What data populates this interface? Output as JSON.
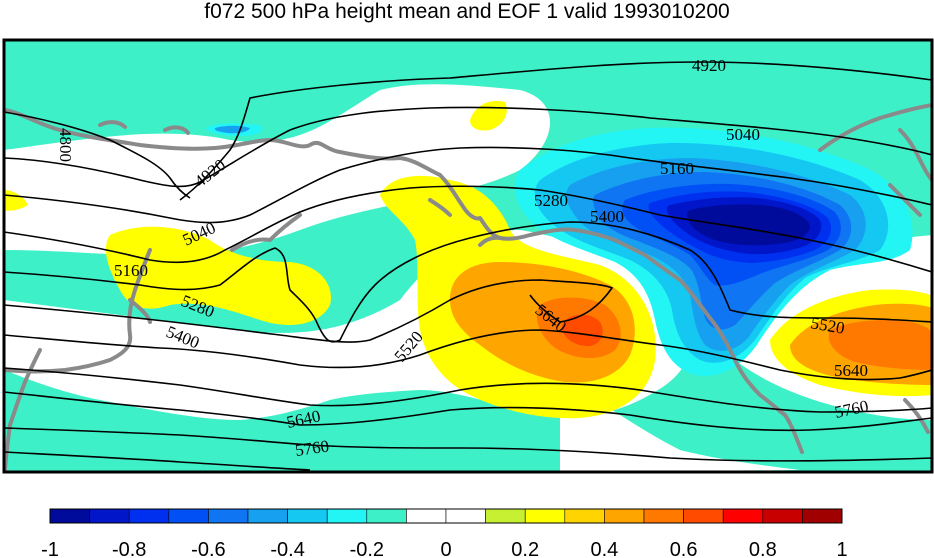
{
  "title": "f072 500 hPa height mean and EOF 1 valid 1993010200",
  "colors": {
    "coast": "#8a8a8a",
    "contour": "#000000",
    "frame": "#000000"
  },
  "legend": {
    "colors": [
      "#000a9b",
      "#0016c8",
      "#0030ef",
      "#0050f5",
      "#0f75f2",
      "#18a0f0",
      "#14c8f2",
      "#23f5f5",
      "#3ef0c8",
      "#ffffff",
      "#ffffff",
      "#c8f032",
      "#ffff00",
      "#ffd400",
      "#ffa500",
      "#ff7800",
      "#ff4b00",
      "#ff0000",
      "#c80000",
      "#a00000"
    ],
    "ticks": [
      "-1",
      "-0.8",
      "-0.6",
      "-0.4",
      "-0.2",
      "0",
      "0.2",
      "0.4",
      "0.6",
      "0.8",
      "1"
    ]
  },
  "contour_labels": [
    {
      "id": "c4920a",
      "text": "4920"
    },
    {
      "id": "c4800",
      "text": "4800"
    },
    {
      "id": "c4920b",
      "text": "4920"
    },
    {
      "id": "c5040a",
      "text": "5040"
    },
    {
      "id": "c5040b",
      "text": "5040"
    },
    {
      "id": "c5160a",
      "text": "5160"
    },
    {
      "id": "c5160b",
      "text": "5160"
    },
    {
      "id": "c5280a",
      "text": "5280"
    },
    {
      "id": "c5280b",
      "text": "5280"
    },
    {
      "id": "c5400a",
      "text": "5400"
    },
    {
      "id": "c5400b",
      "text": "5400"
    },
    {
      "id": "c5520a",
      "text": "5520"
    },
    {
      "id": "c5520b",
      "text": "5520"
    },
    {
      "id": "c5640a",
      "text": "5640"
    },
    {
      "id": "c5640b",
      "text": "5640"
    },
    {
      "id": "c5640c",
      "text": "5640"
    },
    {
      "id": "c5760a",
      "text": "5760"
    },
    {
      "id": "c5760b",
      "text": "5760"
    }
  ]
}
